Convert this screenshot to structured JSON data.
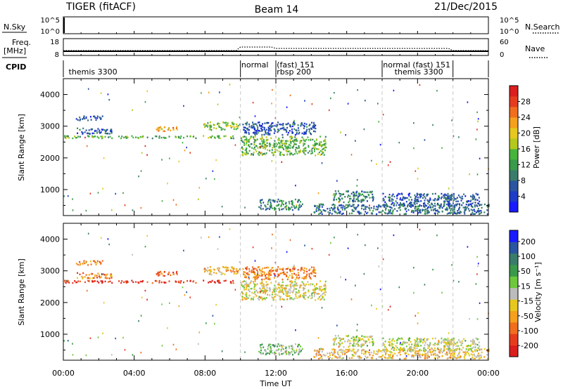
{
  "header": {
    "radar": "TIGER (fitACF)",
    "beam": "Beam 14",
    "date": "21/Dec/2015"
  },
  "strip_labels": {
    "nsky": "N.Sky",
    "nsearch": "N.Search",
    "freq_l1": "Freq.",
    "freq_l2": "[MHz]",
    "nave": "Nave",
    "cpid": "CPID",
    "nsky_ticks": [
      "10^5",
      "10^0"
    ],
    "freq_ticks": [
      "18",
      "8"
    ],
    "nave_ticks": [
      "60",
      "0"
    ]
  },
  "cpid_labels": [
    {
      "text": "themis 3300",
      "hour": 0.3,
      "row": 2
    },
    {
      "text": "normal",
      "hour": 10.05,
      "row": 1
    },
    {
      "text": "(fast) 151",
      "hour": 12.05,
      "row": 1
    },
    {
      "text": "rbsp 200",
      "hour": 12.05,
      "row": 2
    },
    {
      "text": "normal (fast) 151",
      "hour": 18.05,
      "row": 1
    },
    {
      "text": "themis 3300",
      "hour": 18.7,
      "row": 2
    }
  ],
  "cpid_boundaries": [
    10,
    12,
    18,
    22
  ],
  "x_axis": {
    "label": "Time UT",
    "ticks": [
      "00:00",
      "04:00",
      "08:00",
      "12:00",
      "16:00",
      "20:00",
      "00:00"
    ]
  },
  "chart_data": [
    {
      "type": "heatmap",
      "title": "",
      "xlabel": "Time UT",
      "ylabel": "Slant Range [km]",
      "xlim": [
        0,
        24
      ],
      "ylim": [
        180,
        4500
      ],
      "yticks": [
        "1000",
        "2000",
        "3000",
        "4000"
      ],
      "colorbar": {
        "label": "Power [dB]",
        "ticks": [
          "4",
          "8",
          "12",
          "16",
          "20",
          "24",
          "28"
        ],
        "colors": [
          "#1a1aff",
          "#1e3cc8",
          "#2a55a0",
          "#3a7c6a",
          "#3a9a4a",
          "#46b43c",
          "#b4c81e",
          "#e6c81e",
          "#f5a01e",
          "#f06e1e",
          "#e63c1e",
          "#dc1e1e"
        ]
      },
      "echo_regions": [
        {
          "t": [
            0.7,
            2.8
          ],
          "r": [
            2780,
            2960
          ],
          "level": 0.22
        },
        {
          "t": [
            0.6,
            2.2
          ],
          "r": [
            3200,
            3340
          ],
          "level": 0.15
        },
        {
          "t": [
            0.0,
            9.7
          ],
          "r": [
            2640,
            2720
          ],
          "level": 0.45
        },
        {
          "t": [
            5.2,
            6.4
          ],
          "r": [
            2850,
            3020
          ],
          "level": 0.7
        },
        {
          "t": [
            7.9,
            9.9
          ],
          "r": [
            2900,
            3150
          ],
          "level": 0.5
        },
        {
          "t": [
            10.0,
            14.8
          ],
          "r": [
            2100,
            2700
          ],
          "level": 0.45
        },
        {
          "t": [
            10.1,
            14.2
          ],
          "r": [
            2750,
            3150
          ],
          "level": 0.2
        },
        {
          "t": [
            11.0,
            13.5
          ],
          "r": [
            380,
            720
          ],
          "level": 0.3
        },
        {
          "t": [
            14.0,
            24.0
          ],
          "r": [
            250,
            560
          ],
          "level": 0.25
        },
        {
          "t": [
            15.2,
            17.5
          ],
          "r": [
            620,
            980
          ],
          "level": 0.3
        },
        {
          "t": [
            18.0,
            23.5
          ],
          "r": [
            500,
            900
          ],
          "level": 0.2
        }
      ]
    },
    {
      "type": "heatmap",
      "title": "",
      "xlabel": "Time UT",
      "ylabel": "Slant Range [km]",
      "xlim": [
        0,
        24
      ],
      "ylim": [
        180,
        4500
      ],
      "yticks": [
        "1000",
        "2000",
        "3000",
        "4000"
      ],
      "colorbar": {
        "label": "Velocity [m s⁻¹]",
        "ticks": [
          "200",
          "100",
          "50",
          "15",
          "-15",
          "-50",
          "-100",
          "-200"
        ],
        "colors": [
          "#1a1aff",
          "#2a55a0",
          "#3a7c6a",
          "#3a9a4a",
          "#6ec83c",
          "#bcbcbc",
          "#e6c81e",
          "#f5a01e",
          "#f06e1e",
          "#e63c1e",
          "#dc1e1e"
        ]
      },
      "echo_regions": [
        {
          "t": [
            0.7,
            2.8
          ],
          "r": [
            2780,
            2960
          ],
          "level": 0.75
        },
        {
          "t": [
            0.6,
            2.2
          ],
          "r": [
            3200,
            3340
          ],
          "level": 0.7
        },
        {
          "t": [
            0.0,
            9.7
          ],
          "r": [
            2640,
            2720
          ],
          "level": 0.92
        },
        {
          "t": [
            5.2,
            6.4
          ],
          "r": [
            2850,
            3020
          ],
          "level": 0.8
        },
        {
          "t": [
            7.9,
            9.9
          ],
          "r": [
            2900,
            3150
          ],
          "level": 0.65
        },
        {
          "t": [
            10.0,
            14.8
          ],
          "r": [
            2100,
            2700
          ],
          "level": 0.55
        },
        {
          "t": [
            10.1,
            14.2
          ],
          "r": [
            2750,
            3150
          ],
          "level": 0.75
        },
        {
          "t": [
            11.0,
            13.5
          ],
          "r": [
            380,
            720
          ],
          "level": 0.4
        },
        {
          "t": [
            14.0,
            24.0
          ],
          "r": [
            250,
            560
          ],
          "level": 0.6
        },
        {
          "t": [
            15.2,
            17.5
          ],
          "r": [
            620,
            980
          ],
          "level": 0.5
        },
        {
          "t": [
            18.0,
            23.5
          ],
          "r": [
            500,
            900
          ],
          "level": 0.5
        }
      ]
    }
  ]
}
